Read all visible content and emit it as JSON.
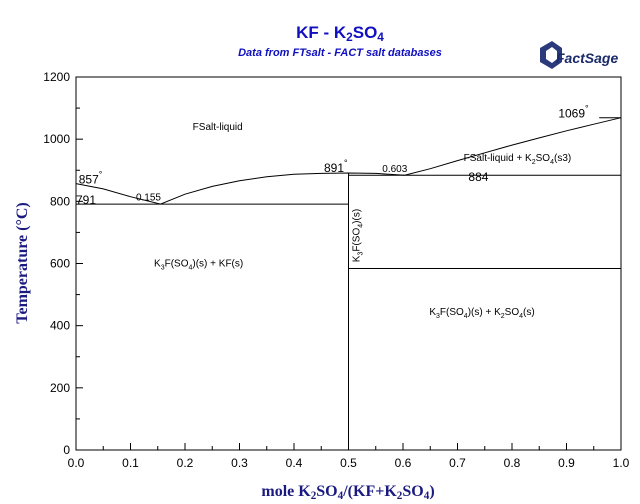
{
  "chart_data": {
    "type": "line",
    "title": "KF - K2SO4",
    "subtitle": "Data from FTsalt - FACT salt databases",
    "brand": "FactSage",
    "xlabel": "mole K2SO4/(KF+K2SO4)",
    "ylabel": "Temperature (°C)",
    "xlim": [
      0,
      1
    ],
    "ylim": [
      0,
      1200
    ],
    "xticks": [
      "0.0",
      "0.1",
      "0.2",
      "0.3",
      "0.4",
      "0.5",
      "0.6",
      "0.7",
      "0.8",
      "0.9",
      "1.0"
    ],
    "yticks": [
      "0",
      "200",
      "400",
      "600",
      "800",
      "1000",
      "1200"
    ],
    "grid": false,
    "series": [
      {
        "values": [
          [
            0,
            857
          ],
          [
            0.05,
            840
          ],
          [
            0.1,
            815
          ],
          [
            0.155,
            791
          ],
          [
            0.2,
            823
          ],
          [
            0.25,
            848
          ],
          [
            0.3,
            866
          ],
          [
            0.35,
            879
          ],
          [
            0.4,
            887
          ],
          [
            0.45,
            890
          ],
          [
            0.5,
            891
          ],
          [
            0.55,
            890
          ],
          [
            0.603,
            884
          ],
          [
            0.65,
            905
          ],
          [
            0.7,
            931
          ],
          [
            0.75,
            956
          ],
          [
            0.8,
            981
          ],
          [
            0.85,
            1004
          ],
          [
            0.9,
            1027
          ],
          [
            0.95,
            1048
          ],
          [
            1.0,
            1069
          ]
        ]
      },
      {
        "values": [
          [
            0,
            791
          ],
          [
            0.5,
            791
          ]
        ]
      },
      {
        "values": [
          [
            0.5,
            884
          ],
          [
            1.0,
            884
          ]
        ]
      },
      {
        "values": [
          [
            0.5,
            584
          ],
          [
            1.0,
            584
          ]
        ]
      },
      {
        "values": [
          [
            0.5,
            0
          ],
          [
            0.5,
            891
          ]
        ]
      },
      {
        "values": [
          [
            0.96,
            1069
          ],
          [
            1.0,
            1069
          ]
        ]
      }
    ],
    "annotations": [
      {
        "text": "857",
        "degree": true,
        "x": 0.005,
        "y": 857
      },
      {
        "text": "791",
        "degree": false,
        "x": 0.0,
        "y": 791
      },
      {
        "text": "0.155",
        "degree": false,
        "x": 0.11,
        "y": 802
      },
      {
        "text": "891",
        "degree": true,
        "x": 0.455,
        "y": 895
      },
      {
        "text": "0.603",
        "degree": false,
        "x": 0.562,
        "y": 895
      },
      {
        "text": "884",
        "degree": false,
        "x": 0.72,
        "y": 865
      },
      {
        "text": "1069",
        "degree": true,
        "x": 0.885,
        "y": 1070
      }
    ],
    "degree_symbol": "°",
    "region_labels": [
      {
        "segments": [
          {
            "t": "FSalt-liquid"
          }
        ],
        "x": 0.26,
        "y": 1030
      },
      {
        "segments": [
          {
            "t": "FSalt-liquid + K"
          },
          {
            "t": "2",
            "sub": true
          },
          {
            "t": "SO"
          },
          {
            "t": "4",
            "sub": true
          },
          {
            "t": "(s3)"
          }
        ],
        "x": 0.81,
        "y": 930
      },
      {
        "segments": [
          {
            "t": "K"
          },
          {
            "t": "3",
            "sub": true
          },
          {
            "t": "F(SO"
          },
          {
            "t": "4",
            "sub": true
          },
          {
            "t": ")(s) + KF(s)"
          }
        ],
        "x": 0.225,
        "y": 590
      },
      {
        "segments": [
          {
            "t": "K"
          },
          {
            "t": "3",
            "sub": true
          },
          {
            "t": "F(SO"
          },
          {
            "t": "4",
            "sub": true
          },
          {
            "t": ")(s) + K"
          },
          {
            "t": "2",
            "sub": true
          },
          {
            "t": "SO"
          },
          {
            "t": "4",
            "sub": true
          },
          {
            "t": "(s)"
          }
        ],
        "x": 0.745,
        "y": 435
      },
      {
        "segments": [
          {
            "t": "K"
          },
          {
            "t": "3",
            "sub": true
          },
          {
            "t": "F(SO"
          },
          {
            "t": "4",
            "sub": true
          },
          {
            "t": ")(s)"
          }
        ],
        "x": 0.52,
        "y": 690,
        "rotate": true
      }
    ]
  }
}
